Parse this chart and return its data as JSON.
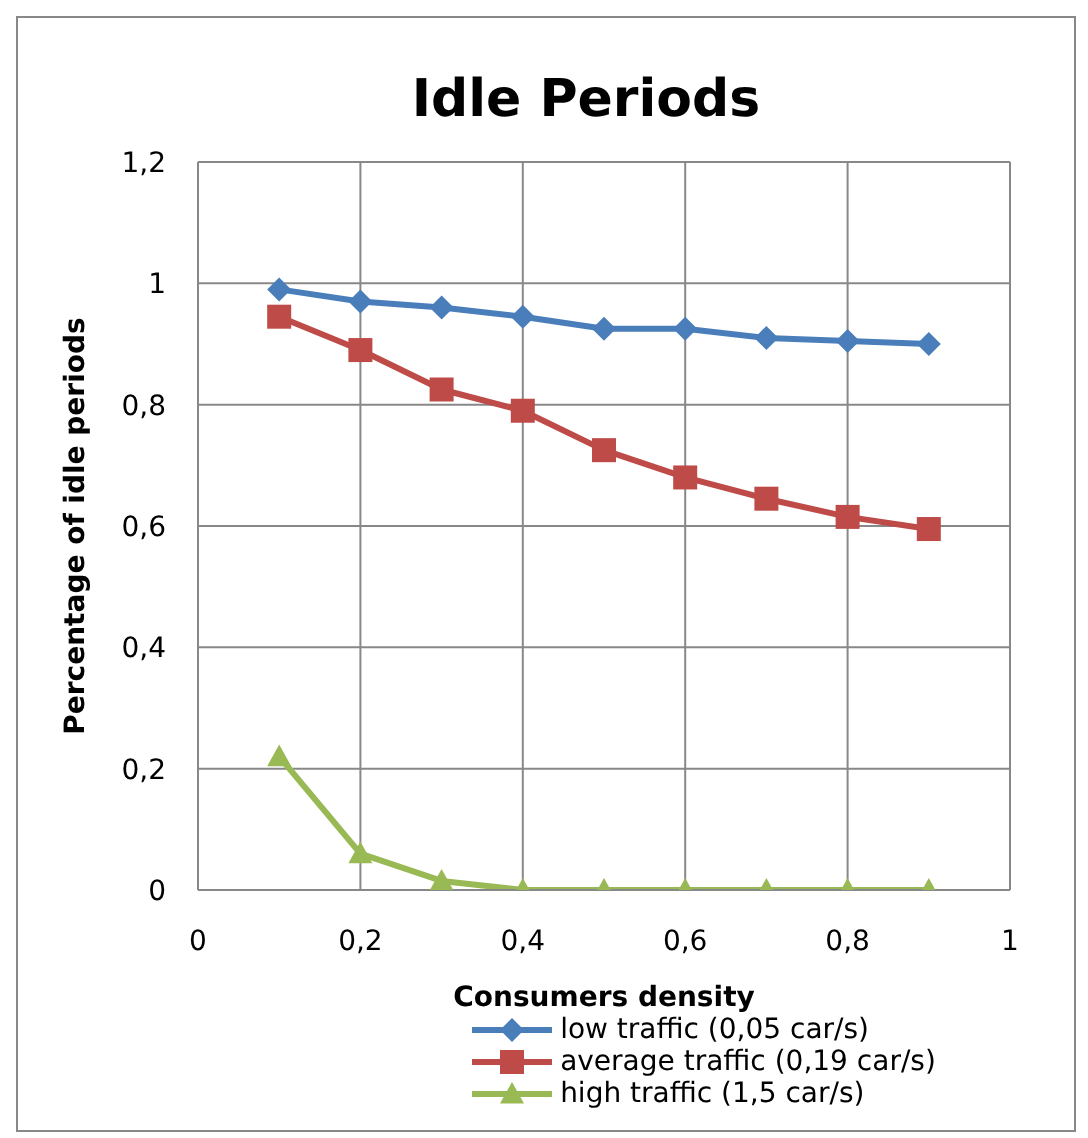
{
  "chart_data": {
    "type": "line",
    "title": "Idle Periods",
    "xlabel": "Consumers density",
    "ylabel": "Percentage of idle periods",
    "x": [
      0.1,
      0.2,
      0.3,
      0.4,
      0.5,
      0.6,
      0.7,
      0.8,
      0.9
    ],
    "series": [
      {
        "name": "low traffic (0,05 car/s)",
        "color": "#4a7ebb",
        "marker": "diamond",
        "values": [
          0.99,
          0.97,
          0.96,
          0.945,
          0.925,
          0.925,
          0.91,
          0.905,
          0.9
        ]
      },
      {
        "name": "average traffic (0,19 car/s)",
        "color": "#be4b48",
        "marker": "square",
        "values": [
          0.945,
          0.89,
          0.825,
          0.79,
          0.725,
          0.68,
          0.645,
          0.615,
          0.595
        ]
      },
      {
        "name": "high traffic (1,5 car/s)",
        "color": "#98b954",
        "marker": "triangle",
        "values": [
          0.22,
          0.06,
          0.015,
          0,
          0,
          0,
          0,
          0,
          0
        ]
      }
    ],
    "xlim": [
      0,
      1
    ],
    "xticks": [
      0,
      {
        "value": 0.2,
        "label": "0,2"
      },
      {
        "value": 0.4,
        "label": "0,4"
      },
      {
        "value": 0.6,
        "label": "0,6"
      },
      {
        "value": 0.8,
        "label": "0,8"
      },
      1
    ],
    "ylim": [
      0,
      1.2
    ],
    "yticks": [
      0,
      {
        "value": 0.2,
        "label": "0,2"
      },
      {
        "value": 0.4,
        "label": "0,4"
      },
      {
        "value": 0.6,
        "label": "0,6"
      },
      {
        "value": 0.8,
        "label": "0,8"
      },
      1,
      {
        "value": 1.2,
        "label": "1,2"
      }
    ],
    "grid": true,
    "legend": "bottom",
    "line_style": "solid"
  }
}
